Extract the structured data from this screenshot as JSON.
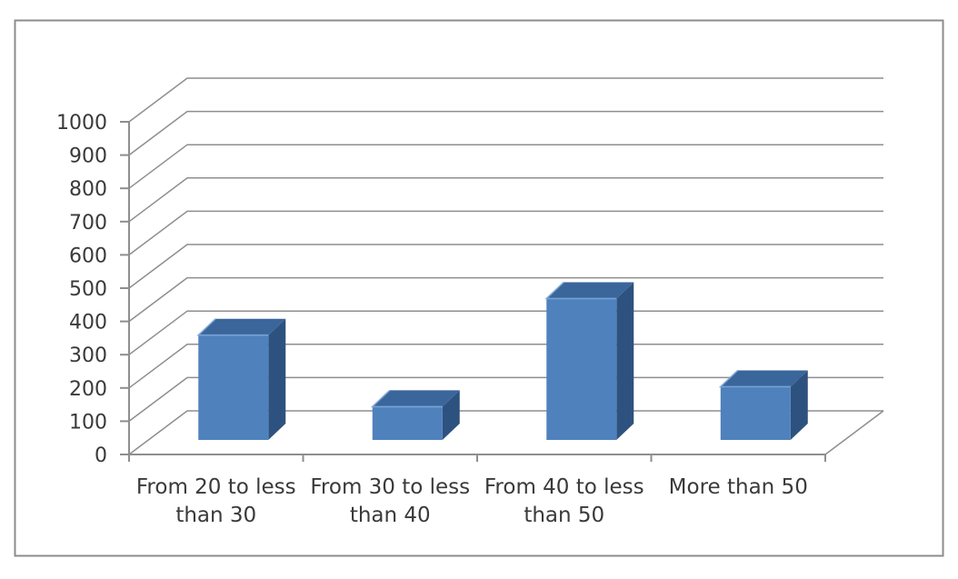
{
  "chart_data": {
    "type": "bar",
    "style": "3d-column",
    "title": "",
    "xlabel": "",
    "ylabel": "",
    "categories": [
      "From 20 to less than 30",
      "From 30 to less than 40",
      "From 40 to less than 50",
      "More than 50"
    ],
    "category_label_lines": [
      [
        "From 20 to less",
        "than 30"
      ],
      [
        "From 30 to less",
        "than 40"
      ],
      [
        "From 40 to less",
        "than 50"
      ],
      [
        "More than 50"
      ]
    ],
    "values": [
      315,
      100,
      425,
      160
    ],
    "ylim": [
      0,
      1000
    ],
    "ytick_interval": 100,
    "yticks": [
      0,
      100,
      200,
      300,
      400,
      500,
      600,
      700,
      800,
      900,
      1000
    ],
    "grid": "back-wall-horizontal",
    "legend": "none",
    "colors": {
      "bar_front": "#4F81BD",
      "bar_top": "#3A669B",
      "bar_side": "#2E527F",
      "bar_edge_highlight": "#7CA6D8",
      "gridline": "#8E8E8E",
      "axis": "#8E8E8E",
      "text": "#3A3A3A",
      "frame_border": "#8C8C8C",
      "background": "#FFFFFF"
    }
  }
}
